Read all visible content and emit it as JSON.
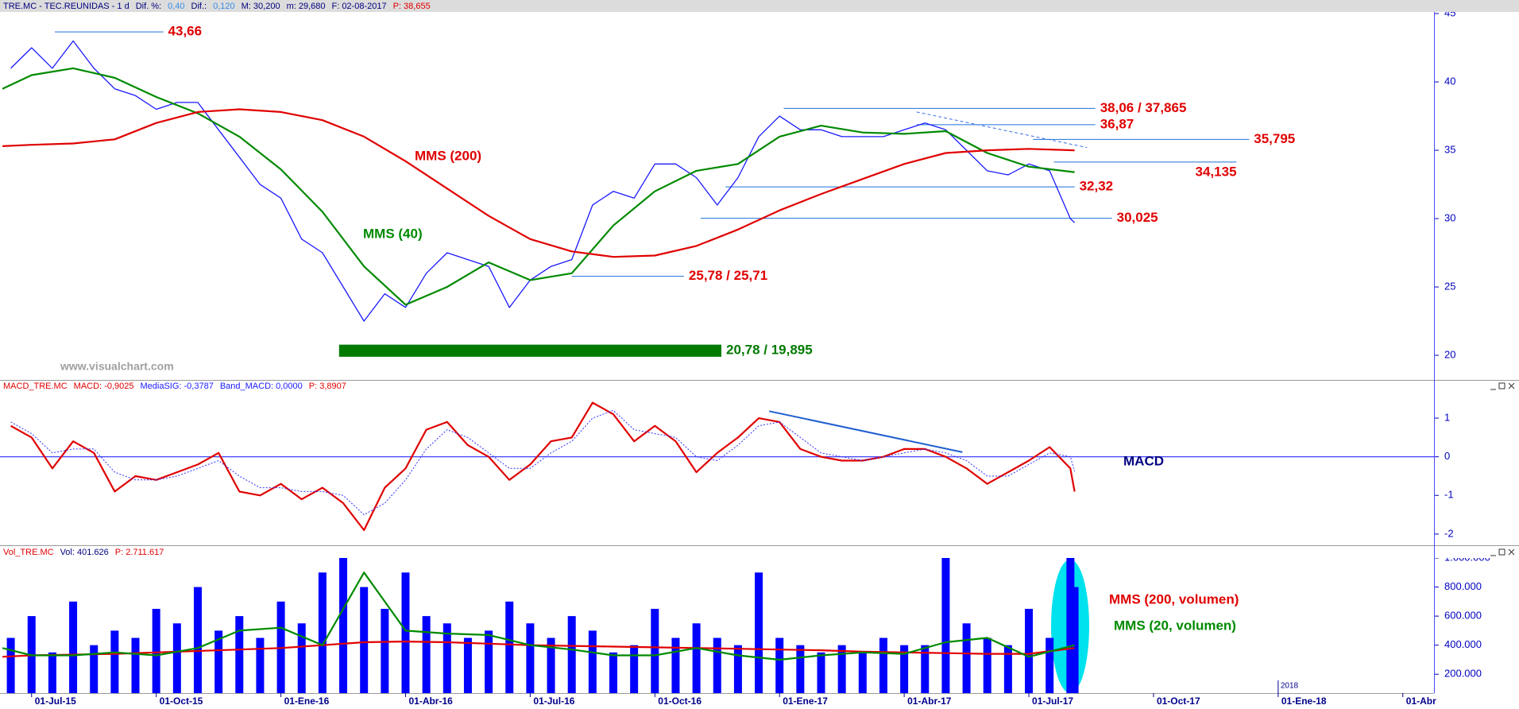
{
  "chart_data": [
    {
      "type": "line",
      "header": [
        {
          "text": "TRE.MC - TEC.REUNIDAS - 1 d",
          "color": "#000080"
        },
        {
          "text": "Dif. %:",
          "color": "#000080"
        },
        {
          "text": "0,40",
          "color": "#3a8ee6"
        },
        {
          "text": "Dif.:",
          "color": "#000080"
        },
        {
          "text": "0,120",
          "color": "#3a8ee6"
        },
        {
          "text": "M: 30,200",
          "color": "#000080"
        },
        {
          "text": "m: 29,680",
          "color": "#000080"
        },
        {
          "text": "F: 02-08-2017",
          "color": "#000080"
        },
        {
          "text": "P: 38,655",
          "color": "#e00000"
        }
      ],
      "watermark": "www.visualchart.com",
      "color": "#1a1aff",
      "xlim": [
        -0.76,
        33.75
      ],
      "ylim": [
        18.2,
        45.12
      ],
      "yticks": [
        20,
        25,
        30,
        35,
        40,
        45
      ],
      "grid": false,
      "x": [
        -0.5,
        0,
        0.5,
        1,
        1.5,
        2,
        2.5,
        3,
        3.5,
        4,
        4.5,
        5,
        5.5,
        6,
        6.5,
        7,
        7.5,
        8,
        8.5,
        9,
        9.5,
        10,
        10.5,
        11,
        11.5,
        12,
        12.5,
        13,
        13.5,
        14,
        14.5,
        15,
        15.5,
        16,
        16.5,
        17,
        17.5,
        18,
        18.5,
        19,
        19.5,
        20,
        20.5,
        21,
        21.5,
        22,
        22.5,
        23,
        23.5,
        24,
        24.5,
        25,
        25.1
      ],
      "values": [
        41,
        42.5,
        41,
        43,
        41,
        39.5,
        39,
        38,
        38.5,
        38.5,
        36.5,
        34.5,
        32.5,
        31.5,
        28.5,
        27.5,
        25,
        22.5,
        24.5,
        23.5,
        26,
        27.5,
        27,
        26.5,
        23.5,
        25.5,
        26.5,
        27,
        31,
        32,
        31.5,
        34,
        34,
        33,
        31,
        33,
        36,
        37.5,
        36.5,
        36.5,
        36,
        36,
        36,
        36.5,
        37,
        36.5,
        35,
        33.5,
        33.2,
        34,
        33.5,
        30,
        29.7
      ],
      "series": [
        {
          "name": "MMS (40)",
          "color": "#008a00",
          "x": [
            -0.7,
            0,
            1,
            2,
            3,
            4,
            5,
            6,
            7,
            8,
            9,
            10,
            11,
            12,
            13,
            14,
            15,
            16,
            17,
            18,
            19,
            20,
            21,
            22,
            23,
            24,
            25.1
          ],
          "values": [
            39.5,
            40.5,
            41,
            40.3,
            38.9,
            37.7,
            36,
            33.6,
            30.5,
            26.5,
            23.7,
            25,
            26.8,
            25.5,
            26,
            29.5,
            32,
            33.5,
            34,
            36,
            36.8,
            36.3,
            36.2,
            36.4,
            34.8,
            33.8,
            33.4
          ]
        },
        {
          "name": "MMS (200)",
          "color": "#e00000",
          "x": [
            -0.7,
            0,
            1,
            2,
            3,
            4,
            5,
            6,
            7,
            8,
            9,
            10,
            11,
            12,
            13,
            14,
            15,
            16,
            17,
            18,
            19,
            20,
            21,
            22,
            23,
            24,
            25.1
          ],
          "values": [
            35.3,
            35.4,
            35.5,
            35.8,
            37,
            37.8,
            38,
            37.8,
            37.2,
            36,
            34.2,
            32.2,
            30.2,
            28.5,
            27.6,
            27.2,
            27.3,
            28,
            29.2,
            30.6,
            31.8,
            32.9,
            34,
            34.8,
            35,
            35.1,
            35
          ]
        }
      ],
      "levels": [
        {
          "label": "43,66",
          "values": [
            43.66
          ],
          "x": [
            0.56,
            3.17
          ],
          "color": "#e00000"
        },
        {
          "label": "38,06 / 37,865",
          "values": [
            38.06,
            37.865
          ],
          "x": [
            18.1,
            25.6
          ],
          "color": "#e00000"
        },
        {
          "label": "36,87",
          "values": [
            36.87
          ],
          "x": [
            21.3,
            25.6
          ],
          "color": "#e00000"
        },
        {
          "label": "35,795",
          "values": [
            35.795
          ],
          "x": [
            24.1,
            29.3
          ],
          "color": "#e00000"
        },
        {
          "label": "34,135",
          "values": [
            34.135
          ],
          "x": [
            24.6,
            29.0
          ],
          "color": "#e00000",
          "label_below": true
        },
        {
          "label": "32,32",
          "values": [
            32.32
          ],
          "x": [
            16.7,
            25.1
          ],
          "color": "#e00000"
        },
        {
          "label": "30,025",
          "values": [
            30.025
          ],
          "x": [
            16.1,
            26.0
          ],
          "color": "#e00000"
        },
        {
          "label": "25,78 / 25,71",
          "values": [
            25.78,
            25.71
          ],
          "x": [
            13.0,
            15.7
          ],
          "color": "#e00000"
        },
        {
          "label": "20,78 / 19,895",
          "values": [
            20.78,
            19.895
          ],
          "x": [
            7.4,
            16.6
          ],
          "color": "#007a00",
          "style": "band"
        }
      ],
      "trend_lines": [
        {
          "x": [
            21.3,
            25.4
          ],
          "y": [
            37.8,
            35.2
          ],
          "color": "#3a6ee6",
          "style": "dashed"
        }
      ]
    },
    {
      "type": "line",
      "header": [
        {
          "text": "MACD_TRE.MC",
          "color": "#e00000"
        },
        {
          "text": "MACD: -0,9025",
          "color": "#e00000"
        },
        {
          "text": "MediaSIG: -0,3787",
          "color": "#1a1aff"
        },
        {
          "text": "Band_MACD: 0,0000",
          "color": "#1a1aff"
        },
        {
          "text": "P: 3,8907",
          "color": "#e00000"
        }
      ],
      "xlim": [
        -0.76,
        33.75
      ],
      "ylim": [
        -2.29,
        1.68
      ],
      "yticks": [
        -2,
        -1,
        0,
        1
      ],
      "zero_line": true,
      "grid": false,
      "series": [
        {
          "name": "MACD",
          "color": "#e00000",
          "x": [
            -0.5,
            0,
            0.5,
            1,
            1.5,
            2,
            2.5,
            3,
            3.5,
            4,
            4.5,
            5,
            5.5,
            6,
            6.5,
            7,
            7.5,
            8,
            8.5,
            9,
            9.5,
            10,
            10.5,
            11,
            11.5,
            12,
            12.5,
            13,
            13.5,
            14,
            14.5,
            15,
            15.5,
            16,
            16.5,
            17,
            17.5,
            18,
            18.5,
            19,
            19.5,
            20,
            20.5,
            21,
            21.5,
            22,
            22.5,
            23,
            23.5,
            24,
            24.5,
            25,
            25.1
          ],
          "values": [
            0.8,
            0.5,
            -0.3,
            0.4,
            0.1,
            -0.9,
            -0.5,
            -0.6,
            -0.4,
            -0.2,
            0.1,
            -0.9,
            -1,
            -0.7,
            -1.1,
            -0.8,
            -1.2,
            -1.9,
            -0.8,
            -0.3,
            0.7,
            0.9,
            0.3,
            0,
            -0.6,
            -0.2,
            0.4,
            0.5,
            1.4,
            1.1,
            0.4,
            0.8,
            0.4,
            -0.4,
            0.1,
            0.5,
            1.0,
            0.9,
            0.2,
            0,
            -0.1,
            -0.1,
            0,
            0.2,
            0.2,
            0,
            -0.3,
            -0.7,
            -0.4,
            -0.1,
            0.25,
            -0.3,
            -0.9
          ]
        },
        {
          "color": "#3030ff",
          "style": "dotted",
          "x": [
            -0.5,
            0,
            0.5,
            1,
            1.5,
            2,
            2.5,
            3,
            3.5,
            4,
            4.5,
            5,
            5.5,
            6,
            6.5,
            7,
            7.5,
            8,
            8.5,
            9,
            9.5,
            10,
            10.5,
            11,
            11.5,
            12,
            12.5,
            13,
            13.5,
            14,
            14.5,
            15,
            15.5,
            16,
            16.5,
            17,
            17.5,
            18,
            18.5,
            19,
            19.5,
            20,
            20.5,
            21,
            21.5,
            22,
            22.5,
            23,
            23.5,
            24,
            24.5,
            25,
            25.1
          ],
          "values": [
            0.9,
            0.6,
            0.1,
            0.2,
            0.2,
            -0.4,
            -0.6,
            -0.6,
            -0.5,
            -0.3,
            -0.1,
            -0.5,
            -0.8,
            -0.8,
            -0.9,
            -0.9,
            -1.0,
            -1.5,
            -1.2,
            -0.6,
            0.2,
            0.7,
            0.5,
            0.1,
            -0.3,
            -0.3,
            0.1,
            0.4,
            1.0,
            1.2,
            0.7,
            0.6,
            0.5,
            0,
            -0.1,
            0.3,
            0.8,
            0.9,
            0.5,
            0.1,
            0,
            -0.1,
            0,
            0.1,
            0.2,
            0.1,
            -0.1,
            -0.5,
            -0.5,
            -0.2,
            0.1,
            0,
            -0.38
          ]
        }
      ],
      "trend_lines": [
        {
          "x": [
            17.75,
            22.4
          ],
          "y": [
            1.18,
            0.12
          ],
          "color": "#1f5fd0",
          "style": "solid"
        }
      ]
    },
    {
      "type": "bar",
      "header": [
        {
          "text": "Vol_TRE.MC",
          "color": "#e00000"
        },
        {
          "text": "Vol: 401.626",
          "color": "#000080"
        },
        {
          "text": "P: 2.711.617",
          "color": "#e00000"
        }
      ],
      "color": "#0000ff",
      "xlim": [
        -0.76,
        33.75
      ],
      "ylim": [
        70000,
        1000000
      ],
      "yticks": [
        {
          "value": 200000,
          "label": "200.000"
        },
        {
          "value": 400000,
          "label": "400.000"
        },
        {
          "value": 600000,
          "label": "600.000"
        },
        {
          "value": 800000,
          "label": "800.000"
        },
        {
          "value": 1000000,
          "label": "1.000.000"
        }
      ],
      "xticks": [
        {
          "value": 0,
          "label": "01-Jul-15"
        },
        {
          "value": 3,
          "label": "01-Oct-15"
        },
        {
          "value": 6,
          "label": "01-Ene-16"
        },
        {
          "value": 9,
          "label": "01-Abr-16"
        },
        {
          "value": 12,
          "label": "01-Jul-16"
        },
        {
          "value": 15,
          "label": "01-Oct-16"
        },
        {
          "value": 18,
          "label": "01-Ene-17"
        },
        {
          "value": 21,
          "label": "01-Abr-17"
        },
        {
          "value": 24,
          "label": "01-Jul-17"
        },
        {
          "value": 27,
          "label": "01-Oct-17"
        },
        {
          "value": 30,
          "label": "01-Ene-18"
        },
        {
          "value": 33,
          "label": "01-Abr"
        }
      ],
      "year_marker": {
        "value": 30,
        "label": "2018"
      },
      "grid": false,
      "x": [
        -0.5,
        0,
        0.5,
        1,
        1.5,
        2,
        2.5,
        3,
        3.5,
        4,
        4.5,
        5,
        5.5,
        6,
        6.5,
        7,
        7.5,
        8,
        8.5,
        9,
        9.5,
        10,
        10.5,
        11,
        11.5,
        12,
        12.5,
        13,
        13.5,
        14,
        14.5,
        15,
        15.5,
        16,
        16.5,
        17,
        17.5,
        18,
        18.5,
        19,
        19.5,
        20,
        20.5,
        21,
        21.5,
        22,
        22.5,
        23,
        23.5,
        24,
        24.5,
        25,
        25.1
      ],
      "values": [
        450000,
        600000,
        350000,
        700000,
        400000,
        500000,
        450000,
        650000,
        550000,
        800000,
        500000,
        600000,
        450000,
        700000,
        550000,
        900000,
        1000000,
        800000,
        650000,
        900000,
        600000,
        550000,
        450000,
        500000,
        700000,
        550000,
        450000,
        600000,
        500000,
        350000,
        400000,
        650000,
        450000,
        550000,
        450000,
        400000,
        900000,
        450000,
        400000,
        350000,
        400000,
        350000,
        450000,
        400000,
        400000,
        1000000,
        550000,
        450000,
        400000,
        650000,
        450000,
        1000000,
        800000
      ],
      "series": [
        {
          "name": "MMS (200, volumen)",
          "color": "#e00000",
          "x": [
            -0.7,
            0,
            1,
            2,
            3,
            4,
            5,
            6,
            7,
            8,
            9,
            10,
            11,
            12,
            13,
            14,
            15,
            16,
            17,
            18,
            19,
            20,
            21,
            22,
            23,
            24,
            25.1
          ],
          "values": [
            320000,
            330000,
            335000,
            340000,
            350000,
            360000,
            370000,
            380000,
            400000,
            420000,
            425000,
            420000,
            410000,
            400000,
            395000,
            390000,
            385000,
            380000,
            375000,
            370000,
            365000,
            355000,
            350000,
            345000,
            340000,
            340000,
            380000
          ]
        },
        {
          "name": "MMS (20, volumen)",
          "color": "#008a00",
          "x": [
            -0.7,
            0,
            1,
            2,
            3,
            4,
            5,
            6,
            7,
            8,
            9,
            10,
            11,
            12,
            13,
            14,
            15,
            16,
            17,
            18,
            19,
            20,
            21,
            22,
            23,
            24,
            25.1
          ],
          "values": [
            380000,
            330000,
            330000,
            350000,
            330000,
            380000,
            500000,
            520000,
            400000,
            900000,
            500000,
            480000,
            470000,
            400000,
            370000,
            330000,
            330000,
            380000,
            330000,
            300000,
            330000,
            350000,
            340000,
            420000,
            450000,
            320000,
            400000
          ]
        }
      ]
    }
  ]
}
